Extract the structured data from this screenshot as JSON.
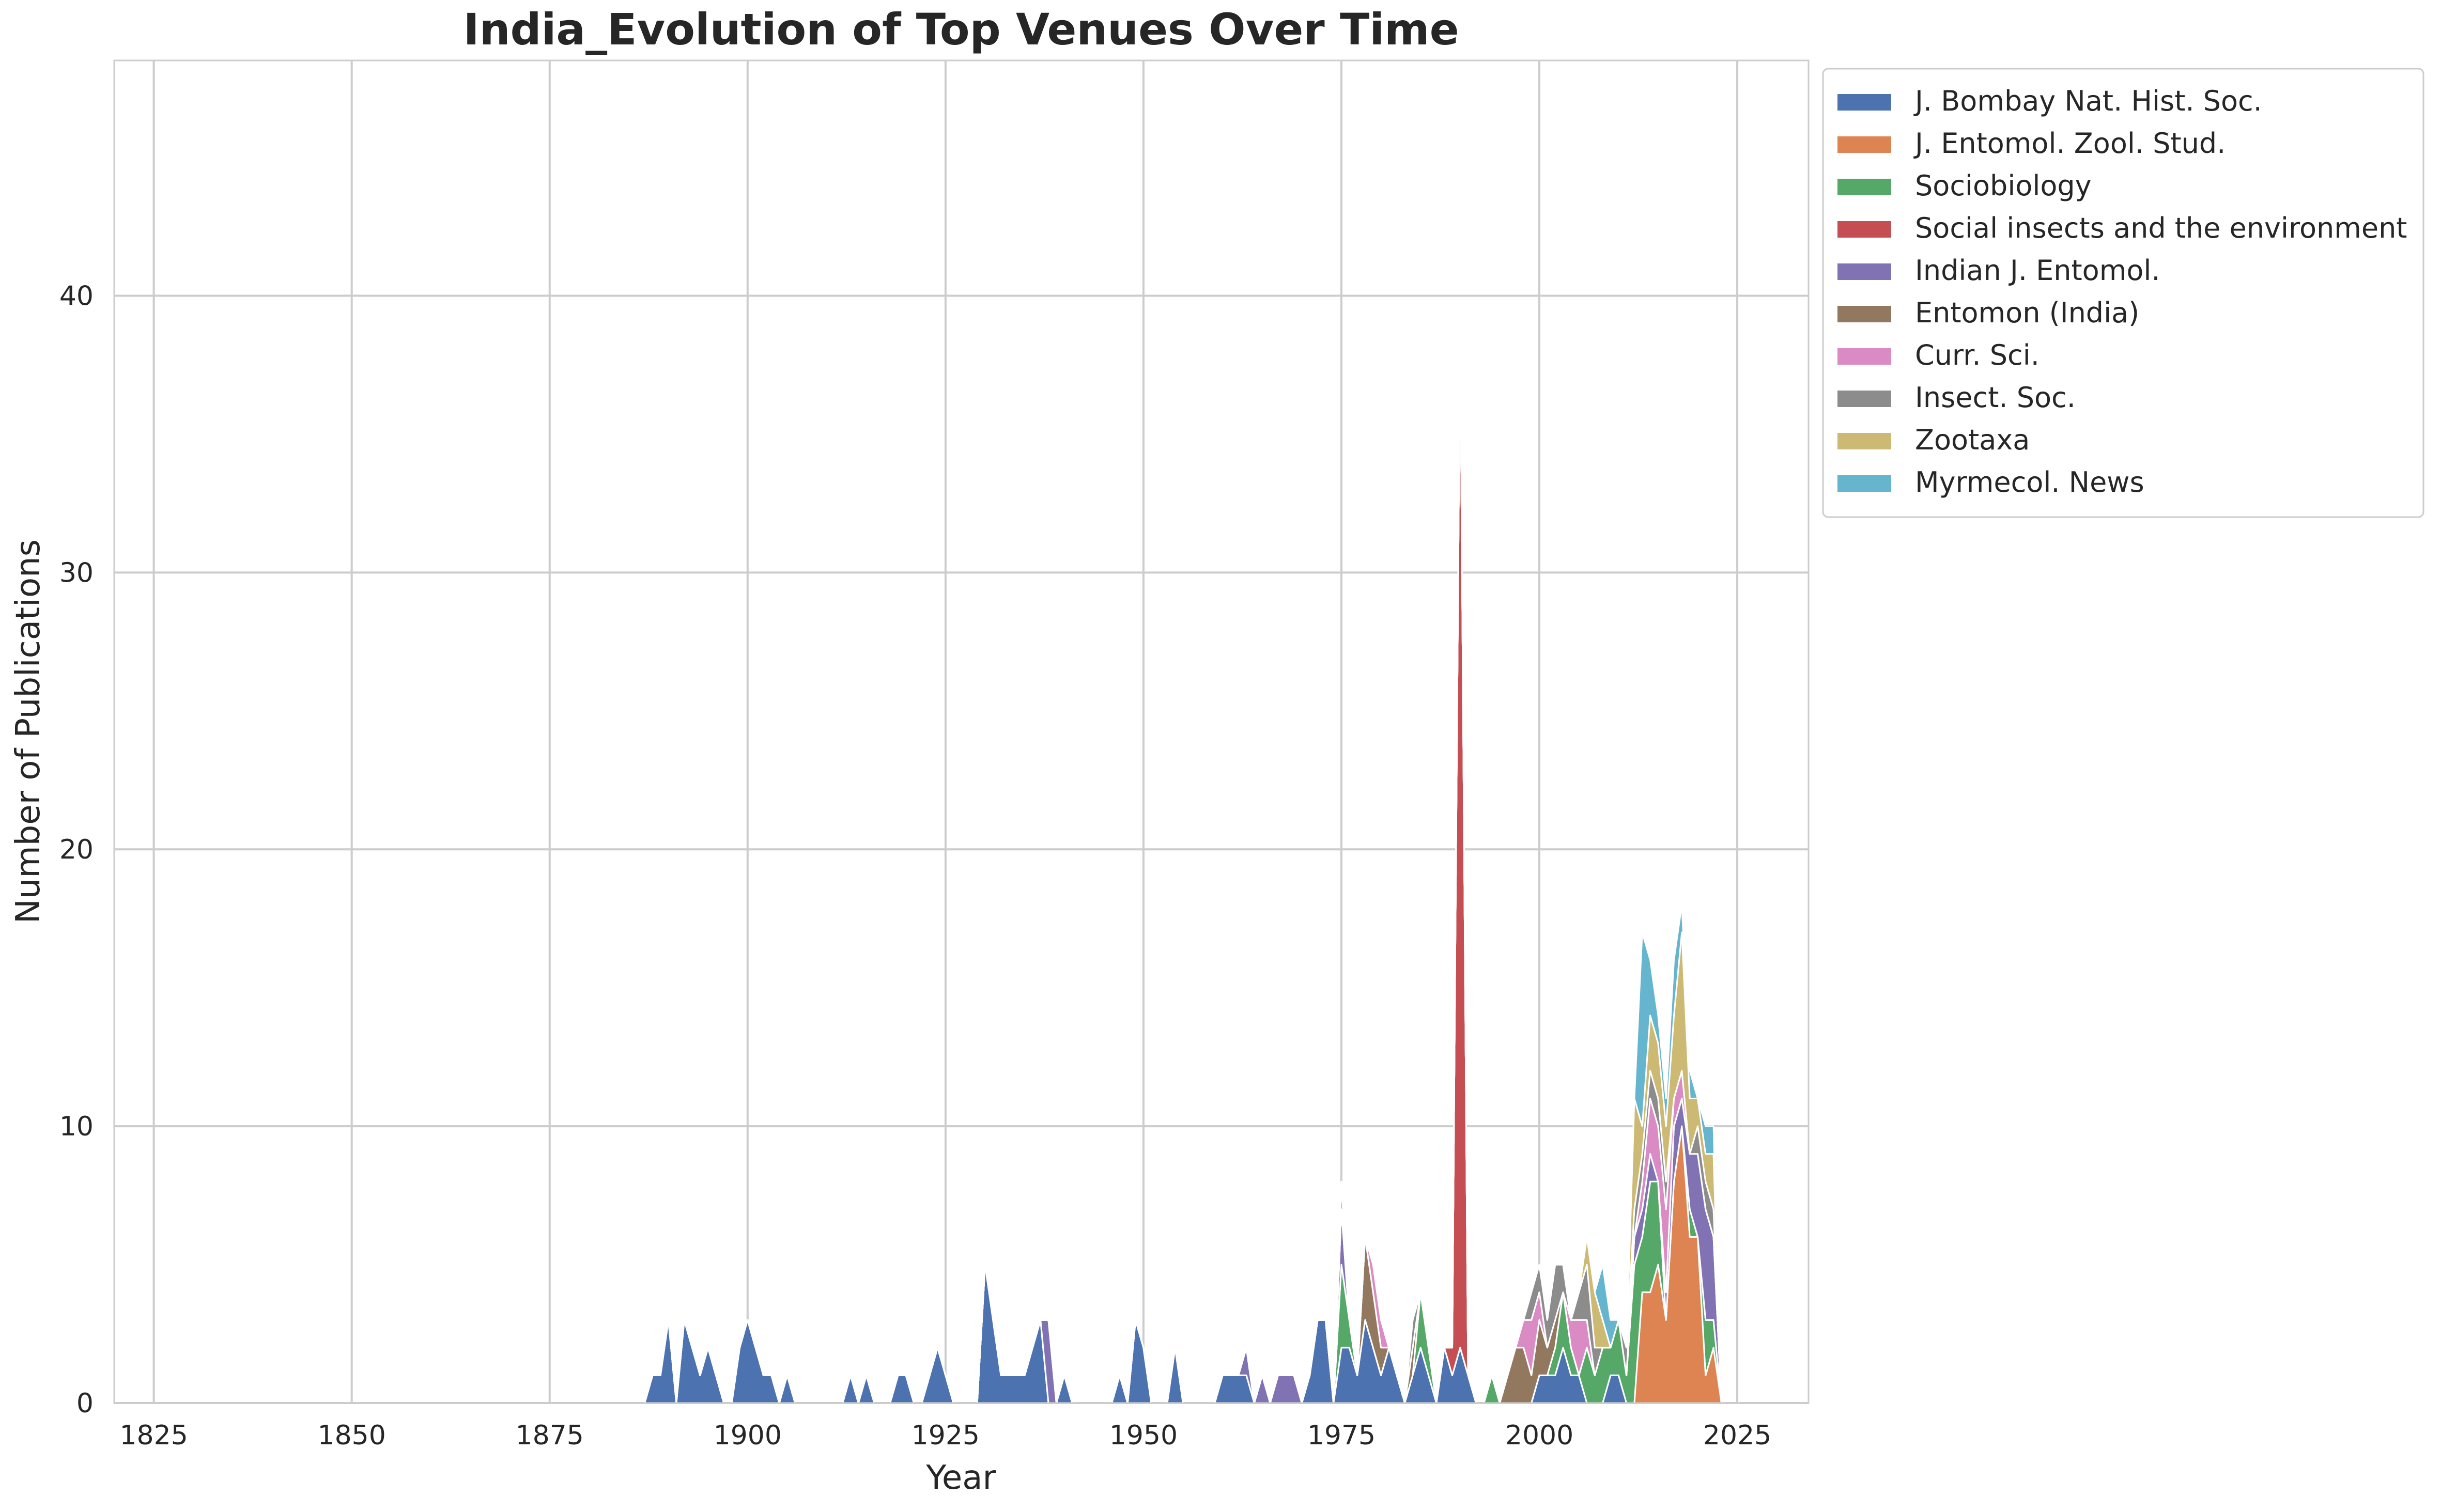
{
  "chart_data": {
    "type": "area",
    "stacked": true,
    "title": "India_Evolution of Top Venues Over Time",
    "xlabel": "Year",
    "ylabel": "Number of Publications",
    "xlim": [
      1820,
      2034
    ],
    "ylim": [
      0,
      48.5
    ],
    "xticks": [
      1825,
      1850,
      1875,
      1900,
      1925,
      1950,
      1975,
      2000,
      2025
    ],
    "yticks": [
      0,
      10,
      20,
      30,
      40
    ],
    "grid": true,
    "legend_position": "outside-top-right",
    "series": [
      {
        "name": "J. Bombay Nat. Hist. Soc.",
        "color": "#4c72b0",
        "points": [
          [
            1887,
            0
          ],
          [
            1888,
            1
          ],
          [
            1889,
            1
          ],
          [
            1890,
            3
          ],
          [
            1891,
            0
          ],
          [
            1892,
            3
          ],
          [
            1893,
            2
          ],
          [
            1894,
            1
          ],
          [
            1895,
            2
          ],
          [
            1896,
            1
          ],
          [
            1897,
            0
          ],
          [
            1899,
            2
          ],
          [
            1900,
            3
          ],
          [
            1901,
            2
          ],
          [
            1902,
            1
          ],
          [
            1903,
            1
          ],
          [
            1904,
            0
          ],
          [
            1905,
            1
          ],
          [
            1906,
            0
          ],
          [
            1912,
            0
          ],
          [
            1913,
            1
          ],
          [
            1914,
            0
          ],
          [
            1915,
            1
          ],
          [
            1916,
            0
          ],
          [
            1918,
            0
          ],
          [
            1919,
            1
          ],
          [
            1920,
            1
          ],
          [
            1921,
            0
          ],
          [
            1923,
            1
          ],
          [
            1924,
            2
          ],
          [
            1925,
            1
          ],
          [
            1926,
            0
          ],
          [
            1929,
            0
          ],
          [
            1930,
            5
          ],
          [
            1931,
            3
          ],
          [
            1932,
            1
          ],
          [
            1933,
            1
          ],
          [
            1934,
            1
          ],
          [
            1935,
            1
          ],
          [
            1936,
            2
          ],
          [
            1937,
            3
          ],
          [
            1938,
            0
          ],
          [
            1940,
            1
          ],
          [
            1941,
            0
          ],
          [
            1946,
            0
          ],
          [
            1947,
            1
          ],
          [
            1948,
            0
          ],
          [
            1949,
            3
          ],
          [
            1950,
            2
          ],
          [
            1951,
            0
          ],
          [
            1953,
            0
          ],
          [
            1954,
            2
          ],
          [
            1955,
            0
          ],
          [
            1959,
            0
          ],
          [
            1960,
            1
          ],
          [
            1961,
            1
          ],
          [
            1962,
            1
          ],
          [
            1963,
            1
          ],
          [
            1964,
            0
          ],
          [
            1970,
            0
          ],
          [
            1971,
            1
          ],
          [
            1972,
            3
          ],
          [
            1973,
            3
          ],
          [
            1974,
            0
          ],
          [
            1975,
            2
          ],
          [
            1976,
            2
          ],
          [
            1977,
            1
          ],
          [
            1978,
            3
          ],
          [
            1979,
            2
          ],
          [
            1980,
            1
          ],
          [
            1981,
            2
          ],
          [
            1982,
            1
          ],
          [
            1983,
            0
          ],
          [
            1984,
            1
          ],
          [
            1985,
            2
          ],
          [
            1986,
            1
          ],
          [
            1987,
            0
          ],
          [
            1988,
            2
          ],
          [
            1989,
            1
          ],
          [
            1990,
            2
          ],
          [
            1991,
            1
          ],
          [
            1992,
            0
          ],
          [
            1999,
            0
          ],
          [
            2000,
            1
          ],
          [
            2001,
            1
          ],
          [
            2002,
            1
          ],
          [
            2003,
            2
          ],
          [
            2004,
            1
          ],
          [
            2005,
            1
          ],
          [
            2006,
            0
          ],
          [
            2008,
            0
          ],
          [
            2009,
            1
          ],
          [
            2010,
            1
          ],
          [
            2011,
            0
          ]
        ]
      },
      {
        "name": "J. Entomol. Zool. Stud.",
        "color": "#dd8452",
        "points": [
          [
            2012,
            0
          ],
          [
            2013,
            4
          ],
          [
            2014,
            4
          ],
          [
            2015,
            5
          ],
          [
            2016,
            3
          ],
          [
            2017,
            8
          ],
          [
            2018,
            10
          ],
          [
            2019,
            6
          ],
          [
            2020,
            6
          ],
          [
            2021,
            1
          ],
          [
            2022,
            2
          ],
          [
            2023,
            0
          ]
        ]
      },
      {
        "name": "Sociobiology",
        "color": "#55a868",
        "points": [
          [
            1974,
            0
          ],
          [
            1975,
            3
          ],
          [
            1976,
            1
          ],
          [
            1977,
            0
          ],
          [
            1984,
            0
          ],
          [
            1985,
            2
          ],
          [
            1986,
            1
          ],
          [
            1987,
            0
          ],
          [
            1993,
            0
          ],
          [
            1994,
            1
          ],
          [
            1995,
            0
          ],
          [
            2001,
            0
          ],
          [
            2002,
            1
          ],
          [
            2003,
            2
          ],
          [
            2004,
            1
          ],
          [
            2005,
            0
          ],
          [
            2006,
            2
          ],
          [
            2007,
            1
          ],
          [
            2008,
            2
          ],
          [
            2009,
            1
          ],
          [
            2010,
            2
          ],
          [
            2011,
            1
          ],
          [
            2012,
            5
          ],
          [
            2013,
            2
          ],
          [
            2014,
            4
          ],
          [
            2015,
            3
          ],
          [
            2016,
            0
          ],
          [
            2018,
            0
          ],
          [
            2019,
            1
          ],
          [
            2020,
            0
          ],
          [
            2021,
            2
          ],
          [
            2022,
            1
          ],
          [
            2023,
            0
          ]
        ]
      },
      {
        "name": "Social insects and the environment",
        "color": "#c44e52",
        "points": [
          [
            1988,
            0
          ],
          [
            1989,
            1
          ],
          [
            1990,
            37
          ],
          [
            1991,
            0
          ]
        ]
      },
      {
        "name": "Indian J. Entomol.",
        "color": "#8172b3",
        "points": [
          [
            1937,
            0
          ],
          [
            1938,
            3
          ],
          [
            1939,
            0
          ],
          [
            1962,
            0
          ],
          [
            1963,
            1
          ],
          [
            1964,
            0
          ],
          [
            1965,
            1
          ],
          [
            1966,
            0
          ],
          [
            1967,
            1
          ],
          [
            1968,
            1
          ],
          [
            1969,
            1
          ],
          [
            1970,
            0
          ],
          [
            1975,
            2
          ],
          [
            1976,
            0
          ],
          [
            2011,
            0
          ],
          [
            2012,
            1
          ],
          [
            2013,
            1
          ],
          [
            2014,
            1
          ],
          [
            2015,
            0
          ],
          [
            2016,
            1
          ],
          [
            2017,
            2
          ],
          [
            2018,
            1
          ],
          [
            2019,
            2
          ],
          [
            2020,
            3
          ],
          [
            2021,
            4
          ],
          [
            2022,
            3
          ],
          [
            2023,
            0
          ]
        ]
      },
      {
        "name": "Entomon (India)",
        "color": "#937860",
        "points": [
          [
            1977,
            0
          ],
          [
            1978,
            3
          ],
          [
            1979,
            2
          ],
          [
            1980,
            1
          ],
          [
            1981,
            0
          ],
          [
            1983,
            0
          ],
          [
            1984,
            1
          ],
          [
            1985,
            0
          ],
          [
            1995,
            0
          ],
          [
            1996,
            1
          ],
          [
            1997,
            2
          ],
          [
            1998,
            2
          ],
          [
            1999,
            1
          ],
          [
            2000,
            2
          ],
          [
            2001,
            1
          ],
          [
            2002,
            1
          ],
          [
            2003,
            0
          ]
        ]
      },
      {
        "name": "Curr. Sci.",
        "color": "#da8bc3",
        "points": [
          [
            1974,
            0
          ],
          [
            1975,
            1
          ],
          [
            1976,
            0
          ],
          [
            1978,
            0
          ],
          [
            1979,
            1
          ],
          [
            1980,
            1
          ],
          [
            1981,
            0
          ],
          [
            1997,
            0
          ],
          [
            1998,
            1
          ],
          [
            1999,
            2
          ],
          [
            2000,
            1
          ],
          [
            2001,
            0
          ],
          [
            2003,
            0
          ],
          [
            2004,
            1
          ],
          [
            2005,
            2
          ],
          [
            2006,
            1
          ],
          [
            2007,
            0
          ],
          [
            2012,
            0
          ],
          [
            2013,
            1
          ],
          [
            2014,
            2
          ],
          [
            2015,
            2
          ],
          [
            2016,
            3
          ],
          [
            2017,
            1
          ],
          [
            2018,
            1
          ],
          [
            2019,
            0
          ]
        ]
      },
      {
        "name": "Insect. Soc.",
        "color": "#8c8c8c",
        "points": [
          [
            1983,
            0
          ],
          [
            1984,
            1
          ],
          [
            1985,
            0
          ],
          [
            1998,
            0
          ],
          [
            1999,
            1
          ],
          [
            2000,
            1
          ],
          [
            2001,
            1
          ],
          [
            2002,
            2
          ],
          [
            2003,
            1
          ],
          [
            2004,
            0
          ],
          [
            2005,
            1
          ],
          [
            2006,
            2
          ],
          [
            2007,
            1
          ],
          [
            2008,
            0
          ],
          [
            2010,
            0
          ],
          [
            2011,
            1
          ],
          [
            2012,
            1
          ],
          [
            2013,
            1
          ],
          [
            2014,
            1
          ],
          [
            2015,
            1
          ],
          [
            2016,
            1
          ],
          [
            2017,
            0
          ],
          [
            2019,
            0
          ],
          [
            2020,
            1
          ],
          [
            2021,
            1
          ],
          [
            2022,
            1
          ],
          [
            2023,
            0
          ]
        ]
      },
      {
        "name": "Zootaxa",
        "color": "#ccb974",
        "points": [
          [
            2005,
            0
          ],
          [
            2006,
            1
          ],
          [
            2007,
            2
          ],
          [
            2008,
            1
          ],
          [
            2009,
            0
          ],
          [
            2011,
            0
          ],
          [
            2012,
            4
          ],
          [
            2013,
            1
          ],
          [
            2014,
            2
          ],
          [
            2015,
            2
          ],
          [
            2016,
            2
          ],
          [
            2017,
            3
          ],
          [
            2018,
            5
          ],
          [
            2019,
            2
          ],
          [
            2020,
            1
          ],
          [
            2021,
            1
          ],
          [
            2022,
            2
          ],
          [
            2023,
            0
          ]
        ]
      },
      {
        "name": "Myrmecol. News",
        "color": "#64b5cd",
        "points": [
          [
            2007,
            0
          ],
          [
            2008,
            2
          ],
          [
            2009,
            1
          ],
          [
            2010,
            0
          ],
          [
            2012,
            0
          ],
          [
            2013,
            7
          ],
          [
            2014,
            2
          ],
          [
            2015,
            1
          ],
          [
            2016,
            1
          ],
          [
            2017,
            2
          ],
          [
            2018,
            1
          ],
          [
            2019,
            1
          ],
          [
            2020,
            0
          ],
          [
            2021,
            1
          ],
          [
            2022,
            1
          ],
          [
            2023,
            0
          ]
        ]
      }
    ]
  }
}
